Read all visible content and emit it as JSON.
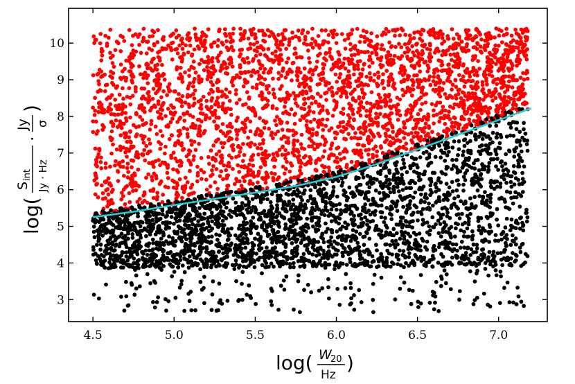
{
  "chart_data": {
    "type": "scatter",
    "title": "",
    "xlabel": {
      "prefix": "log(",
      "numerator_main": "W",
      "numerator_sub": "20",
      "denominator": "Hz",
      "suffix": ")"
    },
    "ylabel": {
      "prefix": "log(",
      "frac1_numerator_main": "S",
      "frac1_numerator_sub": "int",
      "frac1_denominator": "Jy · Hz",
      "dot": "·",
      "frac2_numerator": "Jy",
      "frac2_denominator": "σ",
      "suffix": ")"
    },
    "xlim": [
      4.35,
      7.3
    ],
    "ylim": [
      2.4,
      10.95
    ],
    "xticks": [
      4.5,
      5.0,
      5.5,
      6.0,
      6.5,
      7.0
    ],
    "xtick_labels": [
      "4.5",
      "5.0",
      "5.5",
      "6.0",
      "6.5",
      "7.0"
    ],
    "yticks": [
      3,
      4,
      5,
      6,
      7,
      8,
      9,
      10
    ],
    "ytick_labels": [
      "3",
      "4",
      "5",
      "6",
      "7",
      "8",
      "9",
      "10"
    ],
    "grid": false,
    "series": [
      {
        "color": "#ff0000",
        "x_range": [
          4.5,
          7.18
        ],
        "y_range_max": 10.4,
        "approximate_points": 3000,
        "region": "above threshold curve"
      },
      {
        "color": "#000000",
        "x_range": [
          4.5,
          7.18
        ],
        "y_range_min": 2.65,
        "approximate_points": 3000,
        "region": "below threshold curve"
      }
    ],
    "threshold_curve": {
      "color": "#1ad1d9",
      "x": [
        4.5,
        4.75,
        5.0,
        5.25,
        5.5,
        5.75,
        6.0,
        6.25,
        6.5,
        6.75,
        7.0,
        7.2
      ],
      "y": [
        5.25,
        5.4,
        5.58,
        5.75,
        5.92,
        6.1,
        6.35,
        6.7,
        7.1,
        7.5,
        7.9,
        8.22
      ]
    }
  }
}
